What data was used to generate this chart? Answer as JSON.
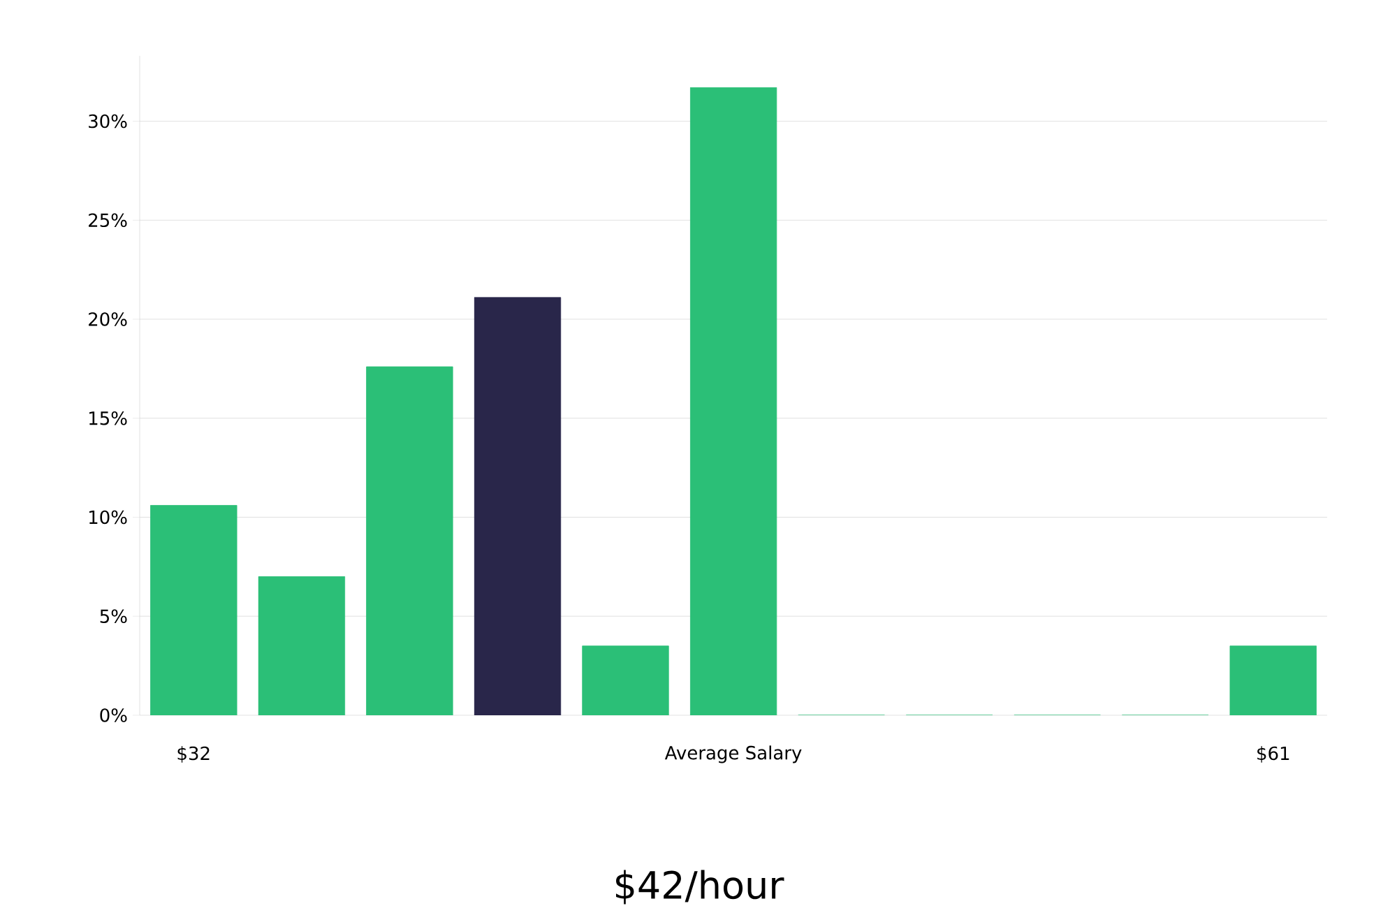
{
  "chart_data": {
    "type": "bar",
    "title": "$42/hour",
    "xlabel": "Average Salary",
    "categories": [
      "$32",
      null,
      null,
      null,
      null,
      null,
      null,
      null,
      null,
      null,
      "$61"
    ],
    "values": [
      10.6,
      7.0,
      17.6,
      21.1,
      3.5,
      31.7,
      0,
      0,
      0,
      0,
      3.5
    ],
    "colors": [
      "#2bbf77",
      "#2bbf77",
      "#2bbf77",
      "#29264a",
      "#2bbf77",
      "#2bbf77",
      "#2bbf77",
      "#2bbf77",
      "#2bbf77",
      "#2bbf77",
      "#2bbf77"
    ],
    "ylim": [
      0,
      33.3
    ],
    "yticks": [
      {
        "value": 0,
        "label": "0%"
      },
      {
        "value": 5,
        "label": "5%"
      },
      {
        "value": 10,
        "label": "10%"
      },
      {
        "value": 15,
        "label": "15%"
      },
      {
        "value": 20,
        "label": "20%"
      },
      {
        "value": 25,
        "label": "25%"
      },
      {
        "value": 30,
        "label": "30%"
      }
    ],
    "grid": "y"
  }
}
